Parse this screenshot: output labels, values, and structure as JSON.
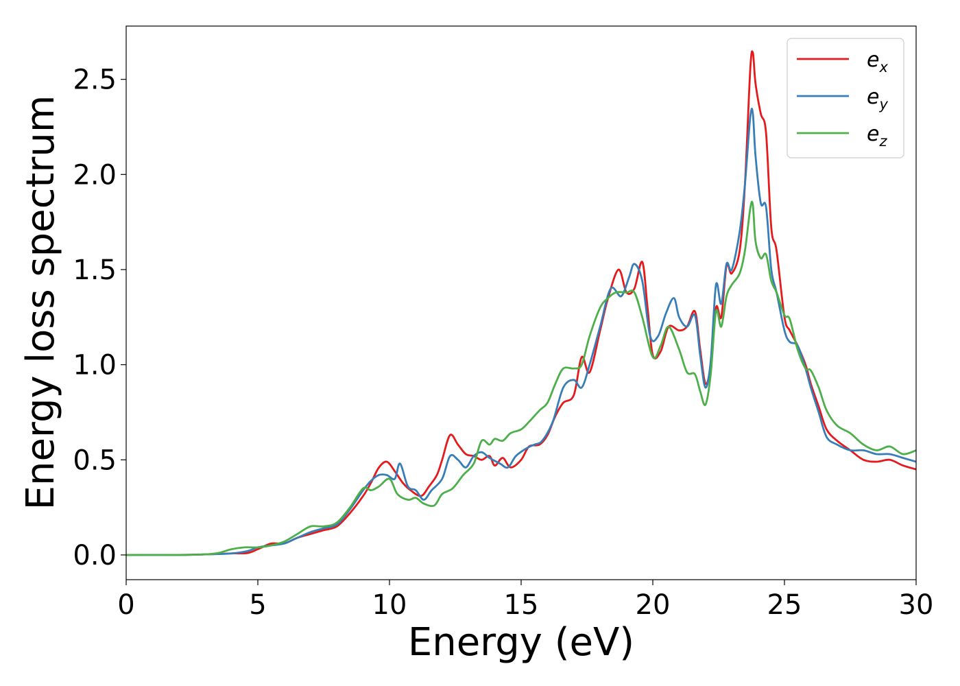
{
  "chart_data": {
    "type": "line",
    "title": "",
    "xlabel": "Energy (eV)",
    "ylabel": "Energy loss spectrum",
    "xlim": [
      0,
      30
    ],
    "ylim": [
      -0.13,
      2.78
    ],
    "grid": false,
    "legend_position": "top-right",
    "x_ticks": [
      0,
      5,
      10,
      15,
      20,
      25,
      30
    ],
    "x_tick_labels": [
      "0",
      "5",
      "10",
      "15",
      "20",
      "25",
      "30"
    ],
    "y_ticks": [
      0.0,
      0.5,
      1.0,
      1.5,
      2.0,
      2.5
    ],
    "y_tick_labels": [
      "0.0",
      "0.5",
      "1.0",
      "1.5",
      "2.0",
      "2.5"
    ],
    "series": [
      {
        "name": "e_x",
        "legend_base": "e",
        "legend_sub": "x",
        "color": "#e41a1c",
        "points": [
          [
            0,
            0
          ],
          [
            2,
            0
          ],
          [
            3,
            0.003
          ],
          [
            4,
            0.008
          ],
          [
            4.6,
            0.01
          ],
          [
            5,
            0.03
          ],
          [
            5.5,
            0.06
          ],
          [
            6,
            0.06
          ],
          [
            6.5,
            0.09
          ],
          [
            7,
            0.11
          ],
          [
            7.5,
            0.13
          ],
          [
            8,
            0.15
          ],
          [
            8.5,
            0.22
          ],
          [
            9,
            0.31
          ],
          [
            9.3,
            0.38
          ],
          [
            9.6,
            0.46
          ],
          [
            9.9,
            0.49
          ],
          [
            10.2,
            0.44
          ],
          [
            10.5,
            0.38
          ],
          [
            10.8,
            0.34
          ],
          [
            11.2,
            0.31
          ],
          [
            11.5,
            0.36
          ],
          [
            11.8,
            0.42
          ],
          [
            12,
            0.5
          ],
          [
            12.3,
            0.63
          ],
          [
            12.6,
            0.58
          ],
          [
            12.9,
            0.53
          ],
          [
            13.2,
            0.52
          ],
          [
            13.5,
            0.5
          ],
          [
            13.8,
            0.52
          ],
          [
            14,
            0.47
          ],
          [
            14.3,
            0.51
          ],
          [
            14.6,
            0.46
          ],
          [
            15,
            0.5
          ],
          [
            15.3,
            0.57
          ],
          [
            15.7,
            0.58
          ],
          [
            16,
            0.63
          ],
          [
            16.3,
            0.73
          ],
          [
            16.6,
            0.8
          ],
          [
            17,
            0.84
          ],
          [
            17.3,
            1.04
          ],
          [
            17.6,
            0.96
          ],
          [
            18,
            1.18
          ],
          [
            18.3,
            1.35
          ],
          [
            18.7,
            1.5
          ],
          [
            19,
            1.38
          ],
          [
            19.3,
            1.4
          ],
          [
            19.6,
            1.54
          ],
          [
            19.8,
            1.3
          ],
          [
            20,
            1.05
          ],
          [
            20.3,
            1.07
          ],
          [
            20.6,
            1.2
          ],
          [
            21,
            1.18
          ],
          [
            21.3,
            1.2
          ],
          [
            21.6,
            1.28
          ],
          [
            21.8,
            1.08
          ],
          [
            22,
            0.9
          ],
          [
            22.2,
            1.0
          ],
          [
            22.4,
            1.3
          ],
          [
            22.6,
            1.25
          ],
          [
            22.8,
            1.52
          ],
          [
            23,
            1.48
          ],
          [
            23.3,
            1.6
          ],
          [
            23.5,
            1.95
          ],
          [
            23.7,
            2.55
          ],
          [
            23.8,
            2.64
          ],
          [
            23.9,
            2.48
          ],
          [
            24.1,
            2.32
          ],
          [
            24.3,
            2.22
          ],
          [
            24.5,
            1.72
          ],
          [
            24.7,
            1.6
          ],
          [
            25,
            1.25
          ],
          [
            25.2,
            1.18
          ],
          [
            25.5,
            1.1
          ],
          [
            25.8,
            1.0
          ],
          [
            26,
            0.9
          ],
          [
            26.3,
            0.78
          ],
          [
            26.6,
            0.66
          ],
          [
            27,
            0.6
          ],
          [
            27.5,
            0.55
          ],
          [
            28,
            0.5
          ],
          [
            28.5,
            0.49
          ],
          [
            29,
            0.5
          ],
          [
            29.5,
            0.47
          ],
          [
            30,
            0.45
          ]
        ]
      },
      {
        "name": "e_y",
        "legend_base": "e",
        "legend_sub": "y",
        "color": "#377eb8",
        "points": [
          [
            0,
            0
          ],
          [
            2,
            0
          ],
          [
            3,
            0.003
          ],
          [
            4,
            0.008
          ],
          [
            4.6,
            0.02
          ],
          [
            5,
            0.04
          ],
          [
            5.5,
            0.05
          ],
          [
            6,
            0.06
          ],
          [
            6.5,
            0.09
          ],
          [
            7,
            0.12
          ],
          [
            7.5,
            0.14
          ],
          [
            8,
            0.16
          ],
          [
            8.5,
            0.24
          ],
          [
            9,
            0.34
          ],
          [
            9.3,
            0.39
          ],
          [
            9.6,
            0.42
          ],
          [
            9.9,
            0.42
          ],
          [
            10.2,
            0.4
          ],
          [
            10.4,
            0.48
          ],
          [
            10.7,
            0.36
          ],
          [
            11,
            0.34
          ],
          [
            11.3,
            0.29
          ],
          [
            11.6,
            0.34
          ],
          [
            12,
            0.4
          ],
          [
            12.3,
            0.52
          ],
          [
            12.6,
            0.5
          ],
          [
            12.9,
            0.46
          ],
          [
            13.2,
            0.52
          ],
          [
            13.5,
            0.54
          ],
          [
            13.8,
            0.51
          ],
          [
            14.2,
            0.48
          ],
          [
            14.5,
            0.46
          ],
          [
            14.8,
            0.52
          ],
          [
            15.2,
            0.56
          ],
          [
            15.5,
            0.58
          ],
          [
            15.8,
            0.6
          ],
          [
            16.2,
            0.7
          ],
          [
            16.6,
            0.88
          ],
          [
            17,
            0.92
          ],
          [
            17.3,
            0.88
          ],
          [
            17.6,
            1.0
          ],
          [
            18,
            1.2
          ],
          [
            18.4,
            1.4
          ],
          [
            18.8,
            1.36
          ],
          [
            19.1,
            1.46
          ],
          [
            19.3,
            1.53
          ],
          [
            19.6,
            1.44
          ],
          [
            19.9,
            1.15
          ],
          [
            20.2,
            1.15
          ],
          [
            20.5,
            1.27
          ],
          [
            20.8,
            1.35
          ],
          [
            21,
            1.25
          ],
          [
            21.3,
            1.2
          ],
          [
            21.6,
            1.26
          ],
          [
            21.8,
            1.05
          ],
          [
            22,
            0.88
          ],
          [
            22.2,
            1.02
          ],
          [
            22.4,
            1.42
          ],
          [
            22.6,
            1.32
          ],
          [
            22.8,
            1.53
          ],
          [
            23,
            1.5
          ],
          [
            23.3,
            1.7
          ],
          [
            23.5,
            1.95
          ],
          [
            23.7,
            2.3
          ],
          [
            23.8,
            2.32
          ],
          [
            23.9,
            2.1
          ],
          [
            24.1,
            1.85
          ],
          [
            24.3,
            1.83
          ],
          [
            24.5,
            1.5
          ],
          [
            24.7,
            1.38
          ],
          [
            25,
            1.18
          ],
          [
            25.2,
            1.12
          ],
          [
            25.5,
            1.1
          ],
          [
            25.8,
            0.98
          ],
          [
            26,
            0.88
          ],
          [
            26.3,
            0.75
          ],
          [
            26.6,
            0.62
          ],
          [
            27,
            0.58
          ],
          [
            27.5,
            0.55
          ],
          [
            28,
            0.55
          ],
          [
            28.5,
            0.53
          ],
          [
            29,
            0.53
          ],
          [
            29.5,
            0.51
          ],
          [
            30,
            0.49
          ]
        ]
      },
      {
        "name": "e_z",
        "legend_base": "e",
        "legend_sub": "z",
        "color": "#4daf4a",
        "points": [
          [
            0,
            0
          ],
          [
            2,
            0
          ],
          [
            3,
            0.003
          ],
          [
            3.5,
            0.01
          ],
          [
            4,
            0.03
          ],
          [
            4.5,
            0.04
          ],
          [
            5,
            0.04
          ],
          [
            5.5,
            0.05
          ],
          [
            6,
            0.07
          ],
          [
            6.5,
            0.11
          ],
          [
            7,
            0.15
          ],
          [
            7.5,
            0.15
          ],
          [
            8,
            0.17
          ],
          [
            8.5,
            0.25
          ],
          [
            9,
            0.35
          ],
          [
            9.3,
            0.34
          ],
          [
            9.6,
            0.36
          ],
          [
            10,
            0.4
          ],
          [
            10.3,
            0.32
          ],
          [
            10.7,
            0.29
          ],
          [
            11,
            0.3
          ],
          [
            11.3,
            0.27
          ],
          [
            11.7,
            0.26
          ],
          [
            12,
            0.32
          ],
          [
            12.4,
            0.35
          ],
          [
            12.8,
            0.42
          ],
          [
            13.2,
            0.48
          ],
          [
            13.5,
            0.6
          ],
          [
            13.8,
            0.58
          ],
          [
            14,
            0.61
          ],
          [
            14.3,
            0.6
          ],
          [
            14.6,
            0.64
          ],
          [
            15,
            0.66
          ],
          [
            15.3,
            0.7
          ],
          [
            15.7,
            0.76
          ],
          [
            16,
            0.8
          ],
          [
            16.3,
            0.9
          ],
          [
            16.6,
            0.98
          ],
          [
            17,
            0.98
          ],
          [
            17.3,
            1.0
          ],
          [
            17.6,
            1.15
          ],
          [
            18,
            1.3
          ],
          [
            18.3,
            1.35
          ],
          [
            18.6,
            1.38
          ],
          [
            19,
            1.38
          ],
          [
            19.3,
            1.38
          ],
          [
            19.6,
            1.25
          ],
          [
            20,
            1.04
          ],
          [
            20.3,
            1.1
          ],
          [
            20.6,
            1.2
          ],
          [
            21,
            1.08
          ],
          [
            21.3,
            0.96
          ],
          [
            21.6,
            0.95
          ],
          [
            21.8,
            0.86
          ],
          [
            22,
            0.79
          ],
          [
            22.2,
            0.95
          ],
          [
            22.4,
            1.28
          ],
          [
            22.6,
            1.2
          ],
          [
            22.8,
            1.36
          ],
          [
            23,
            1.42
          ],
          [
            23.3,
            1.48
          ],
          [
            23.5,
            1.6
          ],
          [
            23.7,
            1.82
          ],
          [
            23.8,
            1.84
          ],
          [
            23.9,
            1.65
          ],
          [
            24.1,
            1.56
          ],
          [
            24.3,
            1.58
          ],
          [
            24.5,
            1.44
          ],
          [
            24.7,
            1.38
          ],
          [
            25,
            1.26
          ],
          [
            25.2,
            1.24
          ],
          [
            25.5,
            1.08
          ],
          [
            25.8,
            0.98
          ],
          [
            26,
            0.97
          ],
          [
            26.3,
            0.88
          ],
          [
            26.6,
            0.76
          ],
          [
            27,
            0.68
          ],
          [
            27.5,
            0.64
          ],
          [
            28,
            0.58
          ],
          [
            28.5,
            0.55
          ],
          [
            29,
            0.57
          ],
          [
            29.5,
            0.53
          ],
          [
            30,
            0.55
          ]
        ]
      }
    ]
  }
}
